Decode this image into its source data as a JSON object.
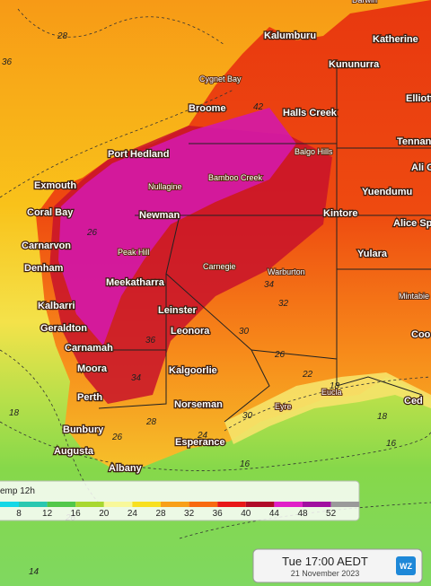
{
  "map": {
    "places": [
      "Darwin",
      "Kalumburu",
      "Katherine",
      "Kununurra",
      "Cygnet Bay",
      "Broome",
      "Halls Creek",
      "Elliott",
      "Tennant",
      "Balgo Hills",
      "Port Hedland",
      "Ali C",
      "Bamboo Creek",
      "Nullagine",
      "Exmouth",
      "Yuendumu",
      "Coral Bay",
      "Newman",
      "Kintore",
      "Alice Sp",
      "Carnarvon",
      "Peak Hill",
      "Yulara",
      "Denham",
      "Carnegie",
      "Warburton",
      "Meekatharra",
      "Mintabie",
      "Kalbarri",
      "Leinster",
      "Geraldton",
      "Leonora",
      "Coo",
      "Carnamah",
      "Moora",
      "Kalgoorlie",
      "Eucla",
      "Perth",
      "Norseman",
      "Ced",
      "Eyre",
      "Bunbury",
      "Augusta",
      "Esperance",
      "Albany"
    ],
    "contours": [
      "36",
      "28",
      "42",
      "26",
      "34",
      "32",
      "30",
      "36",
      "34",
      "26",
      "22",
      "28",
      "18",
      "18",
      "16",
      "24",
      "26",
      "30",
      "16",
      "26",
      "14",
      "18"
    ],
    "legend": {
      "title": "emp 12h",
      "ticks": [
        8,
        12,
        16,
        20,
        24,
        28,
        32,
        36,
        40,
        44,
        48,
        52
      ]
    },
    "timestamp": {
      "time": "Tue 17:00 AEDT",
      "date": "21 November 2023",
      "logo": "WZ"
    }
  }
}
